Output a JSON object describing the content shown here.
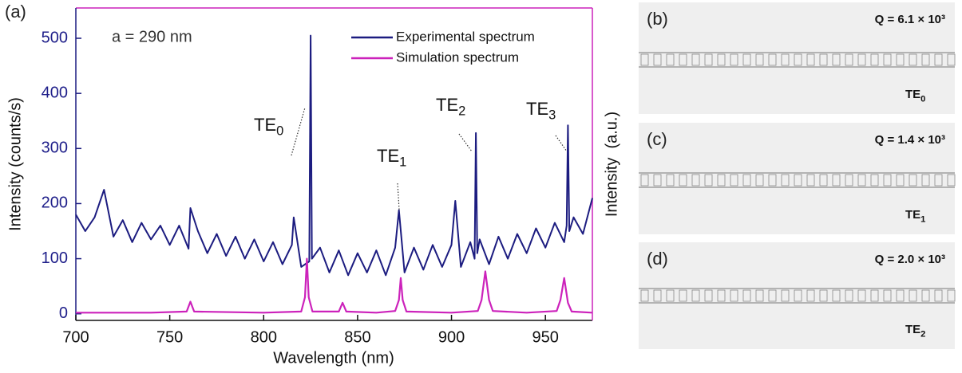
{
  "chart_data": {
    "type": "line",
    "panel_label": "(a)",
    "xlabel": "Wavelength (nm)",
    "ylabel": "Intensity (counts/s)",
    "y2label": "Intensity  (a.u.)",
    "annotation": "a = 290 nm",
    "xlim": [
      700,
      975
    ],
    "xticks": [
      700,
      750,
      800,
      850,
      900,
      950
    ],
    "ylim": [
      -12,
      555
    ],
    "yticks": [
      0,
      100,
      200,
      300,
      400,
      500
    ],
    "y2lim": [
      -12,
      555
    ],
    "peak_labels": [
      {
        "text": "TE",
        "sub": "0"
      },
      {
        "text": "TE",
        "sub": "1"
      },
      {
        "text": "TE",
        "sub": "2"
      },
      {
        "text": "TE",
        "sub": "3"
      }
    ],
    "series": [
      {
        "name": "Experimental spectrum",
        "color": "#1c1c80",
        "x": [
          700,
          705,
          710,
          715,
          720,
          725,
          730,
          735,
          740,
          745,
          750,
          755,
          760,
          761,
          765,
          770,
          775,
          780,
          785,
          790,
          795,
          800,
          805,
          810,
          815,
          816,
          820,
          824.3,
          825,
          825.7,
          830,
          835,
          840,
          845,
          850,
          855,
          860,
          865,
          870,
          872,
          875,
          880,
          885,
          890,
          895,
          900,
          902,
          905,
          910,
          912.3,
          913,
          913.7,
          915,
          920,
          925,
          930,
          935,
          940,
          945,
          950,
          955,
          960,
          961.3,
          962,
          962.7,
          965,
          970,
          975
        ],
        "values": [
          180,
          150,
          175,
          225,
          140,
          170,
          130,
          165,
          135,
          160,
          125,
          160,
          118,
          192,
          150,
          110,
          145,
          105,
          140,
          100,
          135,
          95,
          130,
          90,
          125,
          175,
          85,
          95,
          505,
          100,
          120,
          75,
          115,
          70,
          110,
          75,
          115,
          70,
          120,
          188,
          75,
          120,
          80,
          125,
          85,
          125,
          205,
          85,
          130,
          100,
          328,
          110,
          135,
          90,
          140,
          100,
          145,
          110,
          155,
          120,
          165,
          130,
          160,
          342,
          150,
          175,
          145,
          210
        ]
      },
      {
        "name": "Simulation spectrum",
        "color": "#cc22bb",
        "axis": "y2",
        "x": [
          700,
          740,
          759,
          761,
          763,
          800,
          820,
          822,
          823,
          824,
          826,
          840,
          842,
          844,
          860,
          870,
          872,
          873,
          874,
          876,
          900,
          914,
          916,
          918,
          920,
          922,
          940,
          956,
          958,
          960,
          962,
          964,
          975
        ],
        "values": [
          2,
          2,
          4,
          22,
          4,
          2,
          4,
          30,
          100,
          30,
          4,
          4,
          20,
          4,
          2,
          5,
          25,
          65,
          25,
          4,
          2,
          5,
          25,
          77,
          25,
          5,
          2,
          5,
          25,
          65,
          20,
          4,
          2
        ]
      }
    ]
  },
  "panels": [
    {
      "label": "(b)",
      "q": "Q = 6.1 × 10³",
      "mode": {
        "text": "TE",
        "sub": "0"
      }
    },
    {
      "label": "(c)",
      "q": "Q = 1.4 × 10³",
      "mode": {
        "text": "TE",
        "sub": "1"
      }
    },
    {
      "label": "(d)",
      "q": "Q = 2.0 × 10³",
      "mode": {
        "text": "TE",
        "sub": "2"
      }
    }
  ]
}
